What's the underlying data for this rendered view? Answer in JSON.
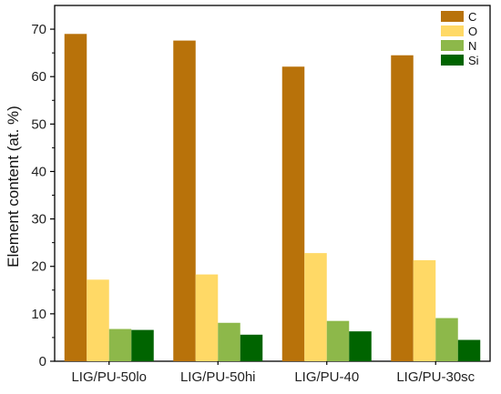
{
  "chart_data": {
    "type": "bar",
    "title": "",
    "xlabel": "",
    "ylabel": "Element content (at. %)",
    "ylim": [
      0,
      75
    ],
    "yticks": [
      0,
      10,
      20,
      30,
      40,
      50,
      60,
      70
    ],
    "grid": false,
    "legend_position": "top-right",
    "categories": [
      "LIG/PU-50lo",
      "LIG/PU-50hi",
      "LIG/PU-40",
      "LIG/PU-30sc"
    ],
    "series": [
      {
        "name": "C",
        "color": "#B8720A",
        "values": [
          69.0,
          67.6,
          62.1,
          64.5
        ]
      },
      {
        "name": "O",
        "color": "#FFD966",
        "values": [
          17.2,
          18.3,
          22.8,
          21.3
        ]
      },
      {
        "name": "N",
        "color": "#8DB84A",
        "values": [
          6.8,
          8.1,
          8.5,
          9.1
        ]
      },
      {
        "name": "Si",
        "color": "#006400",
        "values": [
          6.6,
          5.6,
          6.3,
          4.5
        ]
      }
    ]
  }
}
